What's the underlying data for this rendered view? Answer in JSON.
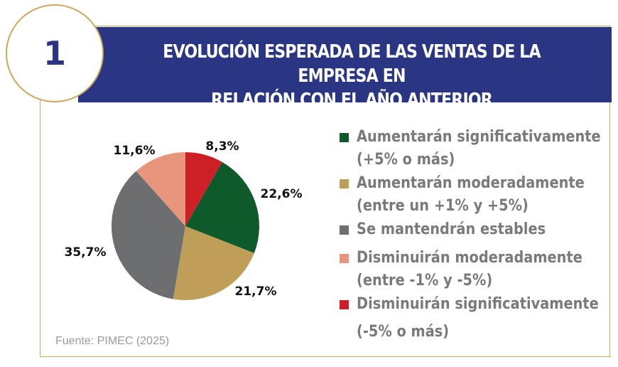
{
  "header": {
    "badge_number": "1",
    "title_line1": "EVOLUCIÓN ESPERADA DE LAS VENTAS DE LA EMPRESA EN",
    "title_line2": "RELACIÓN CON EL AÑO ANTERIOR"
  },
  "source": "Fuente: PIMEC (2025)",
  "chart_data": {
    "type": "pie",
    "slices": [
      {
        "line1": "Aumentarán significativamente",
        "line2": "(+5% o más)",
        "value": 22.6,
        "label": "22,6%",
        "color": "#0e5a2b"
      },
      {
        "line1": "Aumentarán moderadamente",
        "line2": "(entre un +1% y +5%)",
        "value": 21.7,
        "label": "21,7%",
        "color": "#bf9f57"
      },
      {
        "line1": "Se mantendrán estables",
        "line2": "",
        "value": 35.7,
        "label": "35,7%",
        "color": "#6d6e70"
      },
      {
        "line1": "Disminuirán moderadamente",
        "line2": "(entre -1% y -5%)",
        "value": 11.6,
        "label": "11,6%",
        "color": "#e8957e"
      },
      {
        "line1": "Disminuirán significativamente",
        "line2": "(-5% o más)",
        "value": 8.3,
        "label": "8,3%",
        "color": "#cc1f26"
      }
    ],
    "start": "12 o'clock, clockwise from the 8,3% slice",
    "legend_position": "right"
  }
}
